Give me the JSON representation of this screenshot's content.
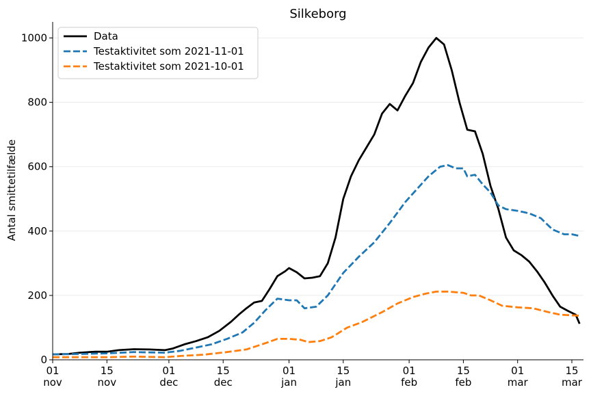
{
  "chart_data": {
    "type": "line",
    "title": "Silkeborg",
    "xlabel": "",
    "ylabel": "Antal smittetilfælde",
    "ylim": [
      0,
      1050
    ],
    "yticks": [
      0,
      200,
      400,
      600,
      800,
      1000
    ],
    "xlim": [
      "2021-11-01",
      "2022-03-18"
    ],
    "xticks": [
      {
        "date": "2021-11-01",
        "day": "01",
        "month": "nov"
      },
      {
        "date": "2021-11-15",
        "day": "15",
        "month": "nov"
      },
      {
        "date": "2021-12-01",
        "day": "01",
        "month": "dec"
      },
      {
        "date": "2021-12-15",
        "day": "15",
        "month": "dec"
      },
      {
        "date": "2022-01-01",
        "day": "01",
        "month": "jan"
      },
      {
        "date": "2022-01-15",
        "day": "15",
        "month": "jan"
      },
      {
        "date": "2022-02-01",
        "day": "01",
        "month": "feb"
      },
      {
        "date": "2022-02-15",
        "day": "15",
        "month": "feb"
      },
      {
        "date": "2022-03-01",
        "day": "01",
        "month": "mar"
      },
      {
        "date": "2022-03-15",
        "day": "15",
        "month": "mar"
      }
    ],
    "grid": "y",
    "legend_position": "top-left",
    "series": [
      {
        "name": "Data",
        "color": "#000000",
        "style": "solid",
        "points": [
          [
            "2021-11-01",
            17
          ],
          [
            "2021-11-05",
            18
          ],
          [
            "2021-11-08",
            22
          ],
          [
            "2021-11-12",
            25
          ],
          [
            "2021-11-15",
            25
          ],
          [
            "2021-11-18",
            30
          ],
          [
            "2021-11-22",
            33
          ],
          [
            "2021-11-26",
            32
          ],
          [
            "2021-11-30",
            30
          ],
          [
            "2021-12-02",
            35
          ],
          [
            "2021-12-05",
            48
          ],
          [
            "2021-12-08",
            58
          ],
          [
            "2021-12-11",
            70
          ],
          [
            "2021-12-14",
            90
          ],
          [
            "2021-12-17",
            118
          ],
          [
            "2021-12-19",
            140
          ],
          [
            "2021-12-21",
            160
          ],
          [
            "2021-12-23",
            178
          ],
          [
            "2021-12-25",
            183
          ],
          [
            "2021-12-27",
            220
          ],
          [
            "2021-12-29",
            260
          ],
          [
            "2021-12-31",
            275
          ],
          [
            "2022-01-01",
            285
          ],
          [
            "2022-01-03",
            272
          ],
          [
            "2022-01-05",
            253
          ],
          [
            "2022-01-07",
            255
          ],
          [
            "2022-01-09",
            260
          ],
          [
            "2022-01-11",
            300
          ],
          [
            "2022-01-13",
            380
          ],
          [
            "2022-01-15",
            500
          ],
          [
            "2022-01-17",
            570
          ],
          [
            "2022-01-19",
            620
          ],
          [
            "2022-01-21",
            660
          ],
          [
            "2022-01-23",
            700
          ],
          [
            "2022-01-25",
            765
          ],
          [
            "2022-01-27",
            795
          ],
          [
            "2022-01-29",
            775
          ],
          [
            "2022-01-31",
            820
          ],
          [
            "2022-02-02",
            860
          ],
          [
            "2022-02-04",
            925
          ],
          [
            "2022-02-06",
            970
          ],
          [
            "2022-02-08",
            1000
          ],
          [
            "2022-02-10",
            980
          ],
          [
            "2022-02-12",
            900
          ],
          [
            "2022-02-14",
            800
          ],
          [
            "2022-02-16",
            715
          ],
          [
            "2022-02-18",
            710
          ],
          [
            "2022-02-20",
            640
          ],
          [
            "2022-02-22",
            540
          ],
          [
            "2022-02-24",
            470
          ],
          [
            "2022-02-26",
            380
          ],
          [
            "2022-02-28",
            340
          ],
          [
            "2022-03-02",
            325
          ],
          [
            "2022-03-04",
            305
          ],
          [
            "2022-03-06",
            275
          ],
          [
            "2022-03-08",
            240
          ],
          [
            "2022-03-10",
            200
          ],
          [
            "2022-03-12",
            165
          ],
          [
            "2022-03-14",
            152
          ],
          [
            "2022-03-16",
            140
          ],
          [
            "2022-03-17",
            112
          ]
        ]
      },
      {
        "name": "Testaktivitet som 2021-11-01",
        "color": "#1f77b4",
        "style": "dashed",
        "points": [
          [
            "2021-11-01",
            17
          ],
          [
            "2021-11-08",
            18
          ],
          [
            "2021-11-15",
            20
          ],
          [
            "2021-11-22",
            24
          ],
          [
            "2021-11-30",
            22
          ],
          [
            "2021-12-04",
            28
          ],
          [
            "2021-12-08",
            38
          ],
          [
            "2021-12-12",
            48
          ],
          [
            "2021-12-16",
            65
          ],
          [
            "2021-12-20",
            85
          ],
          [
            "2021-12-23",
            115
          ],
          [
            "2021-12-26",
            155
          ],
          [
            "2021-12-29",
            190
          ],
          [
            "2022-01-01",
            185
          ],
          [
            "2022-01-03",
            185
          ],
          [
            "2022-01-05",
            160
          ],
          [
            "2022-01-08",
            165
          ],
          [
            "2022-01-11",
            200
          ],
          [
            "2022-01-15",
            270
          ],
          [
            "2022-01-19",
            320
          ],
          [
            "2022-01-23",
            365
          ],
          [
            "2022-01-27",
            425
          ],
          [
            "2022-01-31",
            490
          ],
          [
            "2022-02-03",
            530
          ],
          [
            "2022-02-06",
            570
          ],
          [
            "2022-02-09",
            600
          ],
          [
            "2022-02-11",
            605
          ],
          [
            "2022-02-13",
            595
          ],
          [
            "2022-02-15",
            595
          ],
          [
            "2022-02-16",
            570
          ],
          [
            "2022-02-18",
            575
          ],
          [
            "2022-02-20",
            545
          ],
          [
            "2022-02-22",
            520
          ],
          [
            "2022-02-24",
            480
          ],
          [
            "2022-02-26",
            468
          ],
          [
            "2022-03-01",
            463
          ],
          [
            "2022-03-04",
            455
          ],
          [
            "2022-03-07",
            440
          ],
          [
            "2022-03-10",
            405
          ],
          [
            "2022-03-13",
            390
          ],
          [
            "2022-03-15",
            390
          ],
          [
            "2022-03-17",
            385
          ]
        ]
      },
      {
        "name": "Testaktivitet som 2021-10-01",
        "color": "#ff7f0e",
        "style": "dashed",
        "points": [
          [
            "2021-11-01",
            8
          ],
          [
            "2021-11-15",
            8
          ],
          [
            "2021-11-22",
            10
          ],
          [
            "2021-11-30",
            8
          ],
          [
            "2021-12-04",
            12
          ],
          [
            "2021-12-10",
            16
          ],
          [
            "2021-12-16",
            24
          ],
          [
            "2021-12-21",
            32
          ],
          [
            "2021-12-26",
            52
          ],
          [
            "2021-12-29",
            65
          ],
          [
            "2022-01-01",
            65
          ],
          [
            "2022-01-04",
            62
          ],
          [
            "2022-01-06",
            55
          ],
          [
            "2022-01-09",
            58
          ],
          [
            "2022-01-12",
            70
          ],
          [
            "2022-01-16",
            100
          ],
          [
            "2022-01-20",
            118
          ],
          [
            "2022-01-25",
            148
          ],
          [
            "2022-01-29",
            175
          ],
          [
            "2022-02-02",
            195
          ],
          [
            "2022-02-05",
            205
          ],
          [
            "2022-02-08",
            212
          ],
          [
            "2022-02-11",
            212
          ],
          [
            "2022-02-15",
            208
          ],
          [
            "2022-02-17",
            200
          ],
          [
            "2022-02-19",
            200
          ],
          [
            "2022-02-22",
            185
          ],
          [
            "2022-02-25",
            168
          ],
          [
            "2022-03-01",
            163
          ],
          [
            "2022-03-05",
            160
          ],
          [
            "2022-03-09",
            148
          ],
          [
            "2022-03-12",
            140
          ],
          [
            "2022-03-17",
            137
          ]
        ]
      }
    ]
  }
}
